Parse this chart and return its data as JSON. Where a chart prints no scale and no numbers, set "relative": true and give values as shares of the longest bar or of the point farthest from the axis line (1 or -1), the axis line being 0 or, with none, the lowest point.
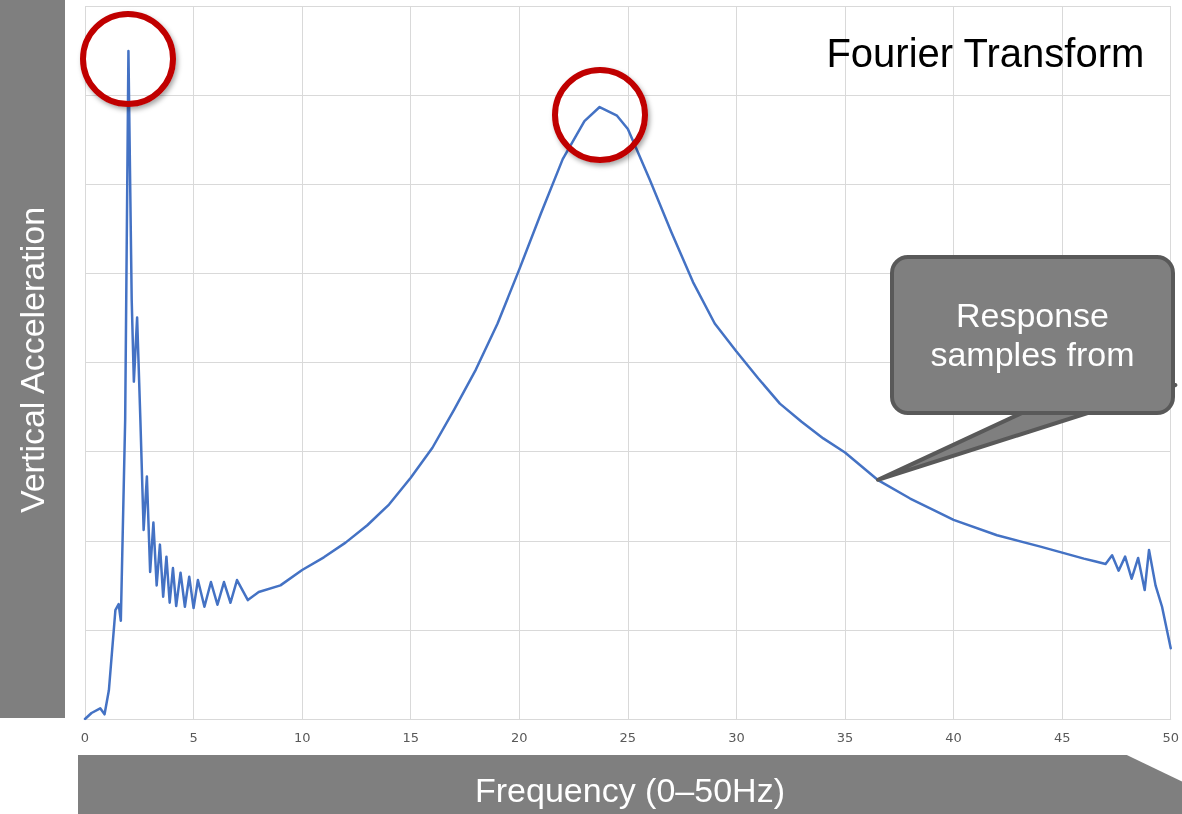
{
  "chart_data": {
    "type": "line",
    "title": "Fourier Transform",
    "xlabel": "Frequency (0–50Hz)",
    "ylabel": "Vertical Acceleration",
    "relative": true,
    "grid": true,
    "marker": "none",
    "xlim": [
      0,
      50
    ],
    "xticks": [
      0,
      5,
      10,
      15,
      20,
      25,
      30,
      35,
      40,
      45,
      50
    ],
    "annotations": [
      {
        "text": "Response samples from",
        "x": 36.5,
        "y": 0.358
      }
    ],
    "series": [
      {
        "color": "#4472c4",
        "x": [
          0,
          0.3,
          0.7,
          0.9,
          1.1,
          1.4,
          1.55,
          1.65,
          1.85,
          2.0,
          2.15,
          2.25,
          2.4,
          2.55,
          2.7,
          2.85,
          3.0,
          3.15,
          3.3,
          3.45,
          3.6,
          3.75,
          3.9,
          4.05,
          4.2,
          4.4,
          4.6,
          4.8,
          5.0,
          5.2,
          5.5,
          5.8,
          6.1,
          6.4,
          6.7,
          7.0,
          7.5,
          8,
          9,
          10,
          11,
          12,
          13,
          14,
          15,
          16,
          17,
          18,
          19,
          20,
          21,
          22,
          23,
          23.7,
          24.5,
          25,
          26,
          27,
          28,
          29,
          30,
          31,
          32,
          33,
          34,
          35,
          36.5,
          38,
          40,
          42,
          44,
          45,
          46,
          46.5,
          47,
          47.3,
          47.6,
          47.9,
          48.2,
          48.5,
          48.8,
          49.0,
          49.3,
          49.6,
          50
        ],
        "values": [
          0,
          0.009,
          0.016,
          0.007,
          0.043,
          0.163,
          0.172,
          0.147,
          0.448,
          1.0,
          0.628,
          0.505,
          0.601,
          0.448,
          0.283,
          0.363,
          0.22,
          0.294,
          0.2,
          0.261,
          0.183,
          0.243,
          0.174,
          0.226,
          0.169,
          0.219,
          0.168,
          0.213,
          0.166,
          0.208,
          0.168,
          0.205,
          0.171,
          0.205,
          0.174,
          0.208,
          0.178,
          0.19,
          0.2,
          0.223,
          0.242,
          0.264,
          0.29,
          0.321,
          0.361,
          0.406,
          0.463,
          0.523,
          0.592,
          0.673,
          0.757,
          0.838,
          0.895,
          0.916,
          0.903,
          0.883,
          0.808,
          0.729,
          0.654,
          0.592,
          0.55,
          0.51,
          0.472,
          0.445,
          0.42,
          0.399,
          0.358,
          0.33,
          0.298,
          0.275,
          0.258,
          0.249,
          0.24,
          0.236,
          0.232,
          0.245,
          0.222,
          0.243,
          0.21,
          0.241,
          0.193,
          0.253,
          0.2,
          0.168,
          0.106
        ]
      }
    ]
  }
}
